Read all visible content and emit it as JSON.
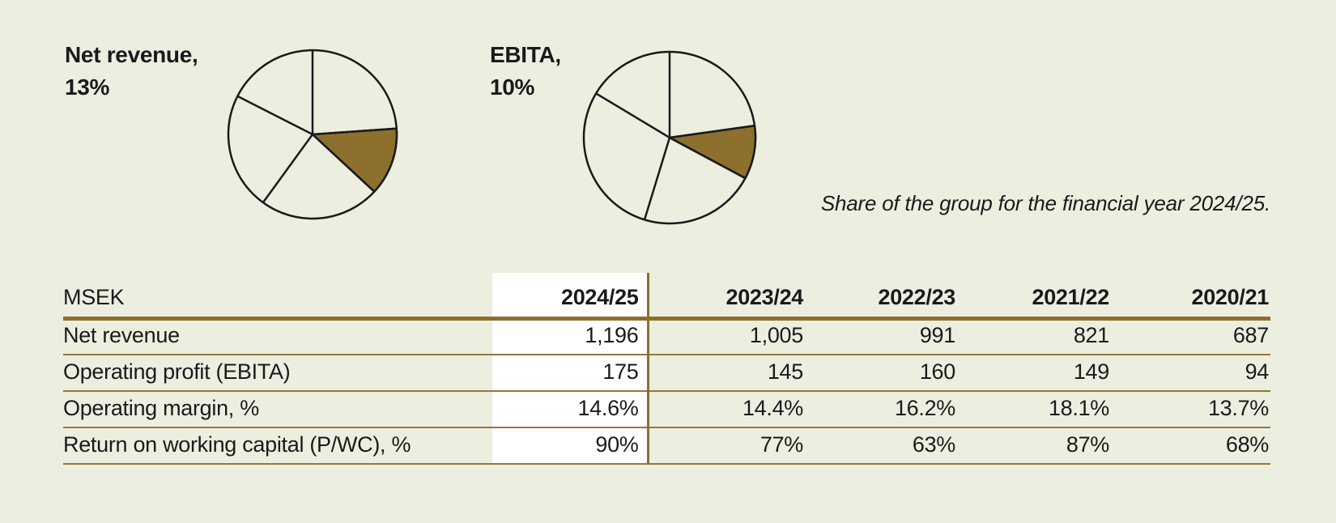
{
  "colors": {
    "page_bg": "#ecefe0",
    "accent_brown": "#8d6f2e",
    "rule_brown": "#95763a",
    "text": "#1a1a1a",
    "highlight_column_bg": "#ffffff",
    "pie_outline": "#1a1a1a"
  },
  "pies": [
    {
      "name": "net-revenue",
      "label_line1": "Net revenue,",
      "label_line2": "13%",
      "share_pct": 13,
      "slice_boundaries_deg": [
        0,
        86,
        132.8,
        216,
        297
      ],
      "highlight_start_deg": 86,
      "highlight_end_deg": 132.8
    },
    {
      "name": "ebita",
      "label_line1": "EBITA,",
      "label_line2": "10%",
      "share_pct": 10,
      "slice_boundaries_deg": [
        0,
        82,
        118.2,
        197,
        301
      ],
      "highlight_start_deg": 82,
      "highlight_end_deg": 118.2
    }
  ],
  "caption": "Share of the group for the financial year 2024/25.",
  "table": {
    "unit_header": "MSEK",
    "year_headers": [
      "2024/25",
      "2023/24",
      "2022/23",
      "2021/22",
      "2020/21"
    ],
    "highlighted_year": "2024/25",
    "rows": [
      {
        "label": "Net revenue",
        "values": [
          "1,196",
          "1,005",
          "991",
          "821",
          "687"
        ]
      },
      {
        "label": "Operating profit (EBITA)",
        "values": [
          "175",
          "145",
          "160",
          "149",
          "94"
        ]
      },
      {
        "label": "Operating margin, %",
        "values": [
          "14.6%",
          "14.4%",
          "16.2%",
          "18.1%",
          "13.7%"
        ]
      },
      {
        "label": "Return on working capital (P/WC), %",
        "values": [
          "90%",
          "77%",
          "63%",
          "87%",
          "68%"
        ]
      }
    ]
  },
  "chart_data": [
    {
      "type": "pie",
      "title": "Net revenue, 13%",
      "highlight_index": 1,
      "highlighted_value_pct": 13,
      "slices_pct": [
        23.9,
        13,
        23.1,
        22.5,
        17.5
      ],
      "note": "Only the highlighted brown slice is labeled; other slice sizes estimated from angles.",
      "legend_position": "none"
    },
    {
      "type": "pie",
      "title": "EBITA, 10%",
      "highlight_index": 1,
      "highlighted_value_pct": 10,
      "slices_pct": [
        22.8,
        10,
        21.9,
        28.9,
        16.4
      ],
      "note": "Only the highlighted brown slice is labeled; other slice sizes estimated from angles.",
      "legend_position": "none"
    },
    {
      "type": "table",
      "title": "Share of the group for the financial year 2024/25.",
      "columns": [
        "MSEK",
        "2024/25",
        "2023/24",
        "2022/23",
        "2021/22",
        "2020/21"
      ],
      "rows": [
        [
          "Net revenue",
          "1,196",
          "1,005",
          "991",
          "821",
          "687"
        ],
        [
          "Operating profit (EBITA)",
          "175",
          "145",
          "160",
          "149",
          "94"
        ],
        [
          "Operating margin, %",
          "14.6%",
          "14.4%",
          "16.2%",
          "18.1%",
          "13.7%"
        ],
        [
          "Return on working capital (P/WC), %",
          "90%",
          "77%",
          "63%",
          "87%",
          "68%"
        ]
      ]
    }
  ]
}
